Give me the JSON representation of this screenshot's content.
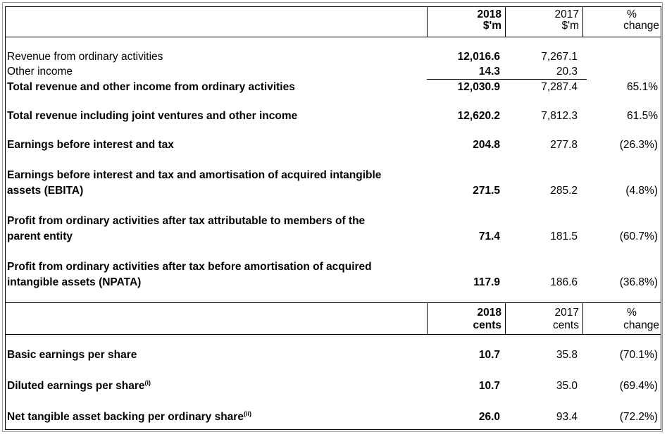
{
  "header1": {
    "col2018": [
      "2018",
      "$'m"
    ],
    "col2017": [
      "2017",
      "$'m"
    ],
    "colPct": [
      "%",
      "change"
    ]
  },
  "rows1": [
    {
      "label": "Revenue from ordinary activities",
      "v2018": "12,016.6",
      "v2017": "7,267.1",
      "pct": "",
      "bold": false
    },
    {
      "label": "Other income",
      "v2018": "14.3",
      "v2017": "20.3",
      "pct": "",
      "bold": false
    },
    {
      "label": "Total revenue and other income from ordinary activities",
      "v2018": "12,030.9",
      "v2017": "7,287.4",
      "pct": "65.1%",
      "bold": true
    },
    {
      "label": "Total revenue including joint ventures and other income",
      "v2018": "12,620.2",
      "v2017": "7,812.3",
      "pct": "61.5%",
      "bold": true
    },
    {
      "label": "Earnings before interest and tax",
      "v2018": "204.8",
      "v2017": "277.8",
      "pct": "(26.3%)",
      "bold": true
    },
    {
      "label1": "Earnings before interest and tax and amortisation of acquired intangible",
      "label2": "assets (EBITA)",
      "v2018": "271.5",
      "v2017": "285.2",
      "pct": "(4.8%)",
      "bold": true
    },
    {
      "label1": "Profit from ordinary activities after tax attributable to members of the",
      "label2": "parent entity",
      "v2018": "71.4",
      "v2017": "181.5",
      "pct": "(60.7%)",
      "bold": true
    },
    {
      "label1": "Profit from ordinary activities after tax before amortisation of acquired",
      "label2": "intangible assets (NPATA)",
      "v2018": "117.9",
      "v2017": "186.6",
      "pct": "(36.8%)",
      "bold": true
    }
  ],
  "header2": {
    "col2018": [
      "2018",
      "cents"
    ],
    "col2017": [
      "2017",
      "cents"
    ],
    "colPct": [
      "%",
      "change"
    ]
  },
  "rows2": [
    {
      "label": "Basic earnings per share",
      "sup": "",
      "v2018": "10.7",
      "v2017": "35.8",
      "pct": "(70.1%)"
    },
    {
      "label": "Diluted earnings per share",
      "sup": "(i)",
      "v2018": "10.7",
      "v2017": "35.0",
      "pct": "(69.4%)"
    },
    {
      "label": "Net tangible asset backing per ordinary share",
      "sup": "(ii)",
      "v2018": "26.0",
      "v2017": "93.4",
      "pct": "(72.2%)"
    }
  ]
}
